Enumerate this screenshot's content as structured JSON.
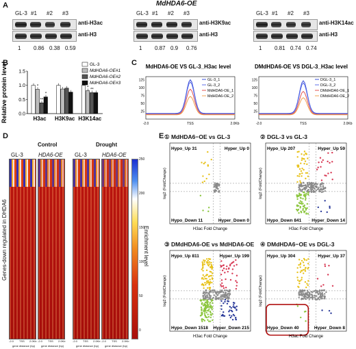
{
  "panel_a": {
    "letter": "A",
    "title": "MdHDA6-OE",
    "blots": [
      {
        "lanes": [
          "GL-3",
          "#1",
          "#2",
          "#3"
        ],
        "labels": [
          "anti-H3ac",
          "anti-H3"
        ],
        "values": [
          "1",
          "0.86",
          "0.38",
          "0.59"
        ]
      },
      {
        "lanes": [
          "GL-3",
          "#1",
          "#2",
          "#3"
        ],
        "labels": [
          "anti-H3K9ac",
          "anti-H3"
        ],
        "values": [
          "1",
          "0.87",
          "0.9",
          "0.76"
        ]
      },
      {
        "lanes": [
          "GL-3",
          "#1",
          "#2",
          "#3"
        ],
        "labels": [
          "anti-H3K14ac",
          "anti-H3"
        ],
        "values": [
          "1",
          "0.81",
          "0.74",
          "0.74"
        ]
      }
    ]
  },
  "panel_b": {
    "letter": "B",
    "chart_data": {
      "type": "bar",
      "ylabel": "Relative protein level",
      "categories": [
        "H3ac",
        "H3K9ac",
        "H3K14ac"
      ],
      "yticks": [
        "0.0",
        "0.5",
        "1.0",
        "1.5"
      ],
      "ylim": [
        0,
        1.5
      ],
      "series": [
        {
          "name": "GL-3",
          "color": "#ffffff",
          "values": [
            1.0,
            1.0,
            1.0
          ]
        },
        {
          "name": "MdHDA6-OE#1",
          "color": "#bdbdbd",
          "values": [
            0.86,
            0.87,
            0.81
          ]
        },
        {
          "name": "MdHDA6-OE#2",
          "color": "#555555",
          "values": [
            0.38,
            0.9,
            0.74
          ]
        },
        {
          "name": "MdHDA6-OE#3",
          "color": "#111111",
          "values": [
            0.59,
            0.76,
            0.74
          ]
        }
      ],
      "stars": [
        "*",
        "**",
        "*",
        "*",
        "**",
        "*"
      ]
    }
  },
  "panel_c": {
    "letter": "C",
    "chart_data": [
      {
        "type": "line",
        "title": "MdHDA6-OE VS GL-3_H3ac level",
        "xticks": [
          "-2.0",
          "TSS",
          "2.0Kb"
        ],
        "yticks": [
          "25",
          "50",
          "75",
          "100",
          "125"
        ],
        "series": [
          {
            "name": "GL-3_1",
            "color": "#3a4fd8",
            "peak": 125
          },
          {
            "name": "GL-3_2",
            "color": "#5e6ee8",
            "peak": 118
          },
          {
            "name": "MdHDA6-OE_1",
            "color": "#e0524f",
            "peak": 95
          },
          {
            "name": "MdHDA6-OE_2",
            "color": "#f0a050",
            "peak": 72
          }
        ]
      },
      {
        "type": "line",
        "title": "DMdHDA6-OE VS DGL-3_H3ac level",
        "xticks": [
          "-2.0",
          "TSS",
          "2.0Kb"
        ],
        "yticks": [
          "25",
          "50",
          "75",
          "100",
          "125"
        ],
        "series": [
          {
            "name": "DGL-3_1",
            "color": "#3a4fd8",
            "peak": 122
          },
          {
            "name": "DGL-3_2",
            "color": "#5e6ee8",
            "peak": 115
          },
          {
            "name": "DMdHDA6-OE_1",
            "color": "#e0524f",
            "peak": 88
          },
          {
            "name": "DMdHDA6-OE_2",
            "color": "#f0a050",
            "peak": 68
          }
        ]
      }
    ]
  },
  "panel_d": {
    "letter": "D",
    "conditions": [
      "Control",
      "Drought"
    ],
    "columns": [
      "GL-3",
      "HDA6-OE",
      "GL-3",
      "HDA6-OE"
    ],
    "ylabel": "Genes-down regulated in DHDA6",
    "colorbar_label": "Enrichment level",
    "colorbar_ticks": [
      "250",
      "200",
      "150",
      "100",
      "50",
      "0"
    ],
    "xticks": [
      "-2.0",
      "TSS",
      "2.0Kb"
    ],
    "xlabel": "gene distance (bp)"
  },
  "panel_e": {
    "letter": "E",
    "xlabel": "H3ac Fold Change",
    "ylabel": "log2 (FoldChange)",
    "plots": [
      {
        "title": "① MdHDA6−OE vs GL-3",
        "hypo_up": "Hypo_Up 31",
        "hyper_up": "Hyper_Up 0",
        "hypo_down": "Hypo_Down 11",
        "hyper_down": "Hyper_Down 0"
      },
      {
        "title": "② DGL-3 vs GL-3",
        "hypo_up": "Hypo_Up 207",
        "hyper_up": "Hyper_Up 59",
        "hypo_down": "Hypo_Down 841",
        "hyper_down": "Hyper_Down 14"
      },
      {
        "title": "③ DMdHDA6-OE vs MdHDA6-OE",
        "hypo_up": "Hypo_Up 811",
        "hyper_up": "Hyper_Up 199",
        "hypo_down": "Hypo_Down 1518",
        "hyper_down": "Hyper_Down 215"
      },
      {
        "title": "④ DMdHDA6−OE vs DGL-3",
        "hypo_up": "Hypo_Up 304",
        "hyper_up": "Hyper_Up 37",
        "hypo_down": "Hypo_Down 40",
        "hyper_down": "Hyper_Down 8"
      }
    ]
  }
}
